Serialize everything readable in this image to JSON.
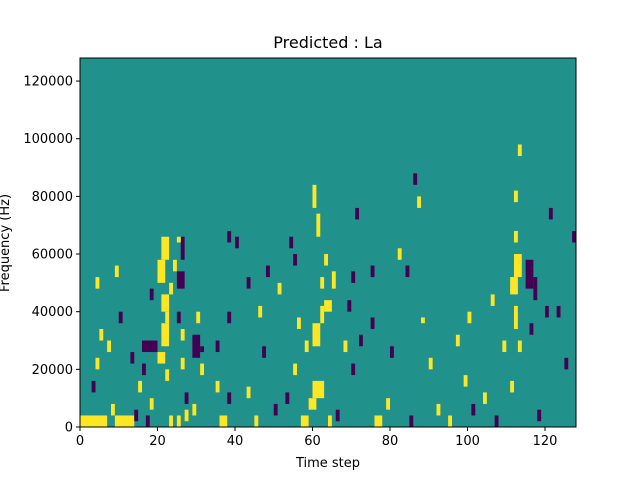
{
  "chart_data": {
    "type": "heatmap",
    "title": "Predicted : La",
    "xlabel": "Time step",
    "ylabel": "Frequency (Hz)",
    "xlim": [
      0,
      128
    ],
    "ylim": [
      0,
      128000
    ],
    "x_ticks": [
      0,
      20,
      40,
      60,
      80,
      100,
      120
    ],
    "y_ticks": [
      0,
      20000,
      40000,
      60000,
      80000,
      100000,
      120000
    ],
    "x_tick_labels": [
      "0",
      "20",
      "40",
      "60",
      "80",
      "100",
      "120"
    ],
    "y_tick_labels": [
      "0",
      "20000",
      "40000",
      "60000",
      "80000",
      "100000",
      "120000"
    ],
    "grid": false,
    "colormap": "viridis",
    "levels": {
      "low": "#440154",
      "mid": "#21918c",
      "high": "#fde725"
    },
    "background_level": "mid",
    "cells": [
      {
        "x": 0,
        "w": 7,
        "y": 0,
        "h": 4000,
        "level": "high"
      },
      {
        "x": 9,
        "w": 5,
        "y": 0,
        "h": 4000,
        "level": "high"
      },
      {
        "x": 8,
        "w": 1,
        "y": 4000,
        "h": 4000,
        "level": "high"
      },
      {
        "x": 3,
        "w": 1,
        "y": 12000,
        "h": 4000,
        "level": "low"
      },
      {
        "x": 4,
        "w": 1,
        "y": 20000,
        "h": 4000,
        "level": "high"
      },
      {
        "x": 4,
        "w": 1,
        "y": 48000,
        "h": 4000,
        "level": "high"
      },
      {
        "x": 5,
        "w": 1,
        "y": 30000,
        "h": 4000,
        "level": "high"
      },
      {
        "x": 7,
        "w": 1,
        "y": 26000,
        "h": 4000,
        "level": "high"
      },
      {
        "x": 9,
        "w": 1,
        "y": 52000,
        "h": 4000,
        "level": "high"
      },
      {
        "x": 10,
        "w": 1,
        "y": 36000,
        "h": 4000,
        "level": "low"
      },
      {
        "x": 13,
        "w": 1,
        "y": 22000,
        "h": 4000,
        "level": "low"
      },
      {
        "x": 14,
        "w": 1,
        "y": 2000,
        "h": 4000,
        "level": "low"
      },
      {
        "x": 17,
        "w": 1,
        "y": 0,
        "h": 4000,
        "level": "low"
      },
      {
        "x": 18,
        "w": 1,
        "y": 6000,
        "h": 4000,
        "level": "high"
      },
      {
        "x": 15,
        "w": 1,
        "y": 12000,
        "h": 4000,
        "level": "high"
      },
      {
        "x": 16,
        "w": 1,
        "y": 18000,
        "h": 4000,
        "level": "low"
      },
      {
        "x": 16,
        "w": 4,
        "y": 26000,
        "h": 4000,
        "level": "low"
      },
      {
        "x": 18,
        "w": 1,
        "y": 44000,
        "h": 4000,
        "level": "low"
      },
      {
        "x": 20,
        "w": 2,
        "y": 22000,
        "h": 4000,
        "level": "high"
      },
      {
        "x": 22,
        "w": 1,
        "y": 16000,
        "h": 4000,
        "level": "high"
      },
      {
        "x": 21,
        "w": 2,
        "y": 28000,
        "h": 8000,
        "level": "high"
      },
      {
        "x": 22,
        "w": 1,
        "y": 36000,
        "h": 4000,
        "level": "high"
      },
      {
        "x": 21,
        "w": 2,
        "y": 40000,
        "h": 6000,
        "level": "high"
      },
      {
        "x": 20,
        "w": 2,
        "y": 50000,
        "h": 8000,
        "level": "high"
      },
      {
        "x": 21,
        "w": 2,
        "y": 58000,
        "h": 8000,
        "level": "high"
      },
      {
        "x": 23,
        "w": 1,
        "y": 46000,
        "h": 4000,
        "level": "high"
      },
      {
        "x": 24,
        "w": 1,
        "y": 54000,
        "h": 4000,
        "level": "high"
      },
      {
        "x": 25,
        "w": 1,
        "y": 36000,
        "h": 4000,
        "level": "low"
      },
      {
        "x": 25,
        "w": 2,
        "y": 48000,
        "h": 6000,
        "level": "low"
      },
      {
        "x": 26,
        "w": 1,
        "y": 58000,
        "h": 8000,
        "level": "low"
      },
      {
        "x": 25,
        "w": 1,
        "y": 64000,
        "h": 2000,
        "level": "high"
      },
      {
        "x": 26,
        "w": 1,
        "y": 30000,
        "h": 4000,
        "level": "high"
      },
      {
        "x": 26,
        "w": 1,
        "y": 20000,
        "h": 4000,
        "level": "high"
      },
      {
        "x": 23,
        "w": 1,
        "y": 0,
        "h": 4000,
        "level": "high"
      },
      {
        "x": 25,
        "w": 1,
        "y": 0,
        "h": 4000,
        "level": "high"
      },
      {
        "x": 27,
        "w": 1,
        "y": 2000,
        "h": 4000,
        "level": "high"
      },
      {
        "x": 27,
        "w": 1,
        "y": 8000,
        "h": 4000,
        "level": "low"
      },
      {
        "x": 29,
        "w": 1,
        "y": 4000,
        "h": 4000,
        "level": "high"
      },
      {
        "x": 29,
        "w": 2,
        "y": 24000,
        "h": 8000,
        "level": "low"
      },
      {
        "x": 30,
        "w": 1,
        "y": 36000,
        "h": 4000,
        "level": "high"
      },
      {
        "x": 31,
        "w": 1,
        "y": 18000,
        "h": 4000,
        "level": "high"
      },
      {
        "x": 35,
        "w": 1,
        "y": 12000,
        "h": 4000,
        "level": "high"
      },
      {
        "x": 35,
        "w": 1,
        "y": 26000,
        "h": 4000,
        "level": "low"
      },
      {
        "x": 36,
        "w": 2,
        "y": 0,
        "h": 4000,
        "level": "high"
      },
      {
        "x": 38,
        "w": 1,
        "y": 8000,
        "h": 4000,
        "level": "low"
      },
      {
        "x": 38,
        "w": 1,
        "y": 36000,
        "h": 4000,
        "level": "low"
      },
      {
        "x": 38,
        "w": 1,
        "y": 64000,
        "h": 4000,
        "level": "low"
      },
      {
        "x": 40,
        "w": 1,
        "y": 62000,
        "h": 4000,
        "level": "low"
      },
      {
        "x": 43,
        "w": 1,
        "y": 10000,
        "h": 4000,
        "level": "high"
      },
      {
        "x": 43,
        "w": 1,
        "y": 48000,
        "h": 4000,
        "level": "low"
      },
      {
        "x": 45,
        "w": 1,
        "y": 0,
        "h": 4000,
        "level": "high"
      },
      {
        "x": 46,
        "w": 1,
        "y": 38000,
        "h": 4000,
        "level": "high"
      },
      {
        "x": 47,
        "w": 1,
        "y": 24000,
        "h": 4000,
        "level": "low"
      },
      {
        "x": 48,
        "w": 1,
        "y": 52000,
        "h": 4000,
        "level": "low"
      },
      {
        "x": 50,
        "w": 1,
        "y": 4000,
        "h": 4000,
        "level": "low"
      },
      {
        "x": 51,
        "w": 1,
        "y": 46000,
        "h": 4000,
        "level": "high"
      },
      {
        "x": 53,
        "w": 1,
        "y": 8000,
        "h": 4000,
        "level": "low"
      },
      {
        "x": 54,
        "w": 1,
        "y": 62000,
        "h": 4000,
        "level": "low"
      },
      {
        "x": 55,
        "w": 1,
        "y": 18000,
        "h": 4000,
        "level": "high"
      },
      {
        "x": 56,
        "w": 1,
        "y": 34000,
        "h": 4000,
        "level": "high"
      },
      {
        "x": 57,
        "w": 2,
        "y": 0,
        "h": 4000,
        "level": "high"
      },
      {
        "x": 59,
        "w": 2,
        "y": 6000,
        "h": 4000,
        "level": "high"
      },
      {
        "x": 60,
        "w": 3,
        "y": 10000,
        "h": 6000,
        "level": "high"
      },
      {
        "x": 58,
        "w": 1,
        "y": 26000,
        "h": 4000,
        "level": "high"
      },
      {
        "x": 60,
        "w": 2,
        "y": 28000,
        "h": 8000,
        "level": "high"
      },
      {
        "x": 62,
        "w": 1,
        "y": 36000,
        "h": 6000,
        "level": "high"
      },
      {
        "x": 63,
        "w": 2,
        "y": 40000,
        "h": 4000,
        "level": "high"
      },
      {
        "x": 62,
        "w": 1,
        "y": 48000,
        "h": 4000,
        "level": "high"
      },
      {
        "x": 63,
        "w": 1,
        "y": 56000,
        "h": 4000,
        "level": "high"
      },
      {
        "x": 61,
        "w": 1,
        "y": 66000,
        "h": 8000,
        "level": "high"
      },
      {
        "x": 60,
        "w": 1,
        "y": 76000,
        "h": 8000,
        "level": "high"
      },
      {
        "x": 65,
        "w": 1,
        "y": 48000,
        "h": 6000,
        "level": "high"
      },
      {
        "x": 64,
        "w": 1,
        "y": 0,
        "h": 4000,
        "level": "high"
      },
      {
        "x": 66,
        "w": 1,
        "y": 2000,
        "h": 4000,
        "level": "low"
      },
      {
        "x": 68,
        "w": 1,
        "y": 26000,
        "h": 4000,
        "level": "high"
      },
      {
        "x": 69,
        "w": 1,
        "y": 40000,
        "h": 4000,
        "level": "low"
      },
      {
        "x": 70,
        "w": 1,
        "y": 18000,
        "h": 4000,
        "level": "low"
      },
      {
        "x": 70,
        "w": 1,
        "y": 50000,
        "h": 4000,
        "level": "low"
      },
      {
        "x": 71,
        "w": 1,
        "y": 72000,
        "h": 4000,
        "level": "low"
      },
      {
        "x": 72,
        "w": 1,
        "y": 28000,
        "h": 4000,
        "level": "low"
      },
      {
        "x": 75,
        "w": 1,
        "y": 34000,
        "h": 4000,
        "level": "low"
      },
      {
        "x": 75,
        "w": 1,
        "y": 52000,
        "h": 4000,
        "level": "low"
      },
      {
        "x": 76,
        "w": 2,
        "y": 0,
        "h": 4000,
        "level": "high"
      },
      {
        "x": 79,
        "w": 1,
        "y": 6000,
        "h": 4000,
        "level": "high"
      },
      {
        "x": 80,
        "w": 1,
        "y": 24000,
        "h": 4000,
        "level": "low"
      },
      {
        "x": 82,
        "w": 1,
        "y": 58000,
        "h": 4000,
        "level": "high"
      },
      {
        "x": 84,
        "w": 1,
        "y": 52000,
        "h": 4000,
        "level": "low"
      },
      {
        "x": 85,
        "w": 1,
        "y": 0,
        "h": 4000,
        "level": "low"
      },
      {
        "x": 86,
        "w": 1,
        "y": 84000,
        "h": 4000,
        "level": "low"
      },
      {
        "x": 87,
        "w": 1,
        "y": 76000,
        "h": 4000,
        "level": "high"
      },
      {
        "x": 90,
        "w": 1,
        "y": 20000,
        "h": 4000,
        "level": "high"
      },
      {
        "x": 92,
        "w": 1,
        "y": 4000,
        "h": 4000,
        "level": "high"
      },
      {
        "x": 95,
        "w": 1,
        "y": 0,
        "h": 4000,
        "level": "high"
      },
      {
        "x": 97,
        "w": 1,
        "y": 28000,
        "h": 4000,
        "level": "high"
      },
      {
        "x": 99,
        "w": 1,
        "y": 14000,
        "h": 4000,
        "level": "high"
      },
      {
        "x": 100,
        "w": 1,
        "y": 36000,
        "h": 4000,
        "level": "high"
      },
      {
        "x": 104,
        "w": 1,
        "y": 8000,
        "h": 4000,
        "level": "high"
      },
      {
        "x": 106,
        "w": 1,
        "y": 42000,
        "h": 4000,
        "level": "high"
      },
      {
        "x": 107,
        "w": 1,
        "y": 0,
        "h": 4000,
        "level": "low"
      },
      {
        "x": 109,
        "w": 1,
        "y": 26000,
        "h": 4000,
        "level": "high"
      },
      {
        "x": 111,
        "w": 1,
        "y": 12000,
        "h": 4000,
        "level": "high"
      },
      {
        "x": 111,
        "w": 2,
        "y": 46000,
        "h": 6000,
        "level": "high"
      },
      {
        "x": 112,
        "w": 2,
        "y": 52000,
        "h": 8000,
        "level": "high"
      },
      {
        "x": 112,
        "w": 1,
        "y": 34000,
        "h": 8000,
        "level": "high"
      },
      {
        "x": 113,
        "w": 1,
        "y": 26000,
        "h": 4000,
        "level": "high"
      },
      {
        "x": 112,
        "w": 1,
        "y": 64000,
        "h": 4000,
        "level": "high"
      },
      {
        "x": 112,
        "w": 1,
        "y": 78000,
        "h": 4000,
        "level": "high"
      },
      {
        "x": 113,
        "w": 1,
        "y": 94000,
        "h": 4000,
        "level": "high"
      },
      {
        "x": 115,
        "w": 2,
        "y": 48000,
        "h": 10000,
        "level": "low"
      },
      {
        "x": 117,
        "w": 1,
        "y": 44000,
        "h": 8000,
        "level": "low"
      },
      {
        "x": 116,
        "w": 1,
        "y": 32000,
        "h": 4000,
        "level": "low"
      },
      {
        "x": 118,
        "w": 1,
        "y": 2000,
        "h": 4000,
        "level": "low"
      },
      {
        "x": 120,
        "w": 1,
        "y": 38000,
        "h": 4000,
        "level": "low"
      },
      {
        "x": 121,
        "w": 1,
        "y": 72000,
        "h": 4000,
        "level": "low"
      },
      {
        "x": 123,
        "w": 1,
        "y": 38000,
        "h": 4000,
        "level": "low"
      },
      {
        "x": 125,
        "w": 1,
        "y": 20000,
        "h": 4000,
        "level": "low"
      },
      {
        "x": 127,
        "w": 1,
        "y": 64000,
        "h": 4000,
        "level": "low"
      },
      {
        "x": 31,
        "w": 1,
        "y": 26000,
        "h": 2000,
        "level": "low"
      },
      {
        "x": 55,
        "w": 1,
        "y": 56000,
        "h": 4000,
        "level": "low"
      },
      {
        "x": 88,
        "w": 1,
        "y": 36000,
        "h": 2000,
        "level": "high"
      },
      {
        "x": 101,
        "w": 1,
        "y": 4000,
        "h": 4000,
        "level": "low"
      }
    ]
  }
}
